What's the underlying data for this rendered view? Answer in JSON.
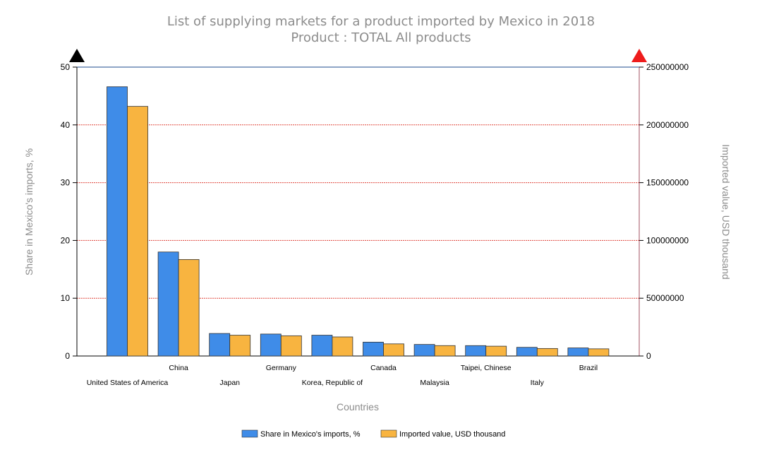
{
  "chart_data": {
    "type": "bar",
    "title": "List of supplying markets for a product imported by Mexico in 2018",
    "subtitle": "Product : TOTAL All products",
    "xlabel": "Countries",
    "ylabel_left": "Share in Mexico's imports, %",
    "ylabel_right": "Imported value, USD thousand",
    "categories": [
      "United States of America",
      "China",
      "Japan",
      "Germany",
      "Korea, Republic of",
      "Canada",
      "Malaysia",
      "Taipei, Chinese",
      "Italy",
      "Brazil"
    ],
    "series": [
      {
        "name": "Share in Mexico's imports, %",
        "axis": "left",
        "color": "#3f8ce8",
        "values": [
          46.6,
          18.0,
          3.9,
          3.8,
          3.6,
          2.4,
          2.0,
          1.8,
          1.5,
          1.4
        ]
      },
      {
        "name": "Imported value, USD thousand",
        "axis": "right",
        "color": "#f8b440",
        "values": [
          216000000,
          83500000,
          18000000,
          17500000,
          16500000,
          10500000,
          9000000,
          8500000,
          6500000,
          6200000
        ]
      }
    ],
    "ylim_left": [
      0,
      50
    ],
    "yticks_left": [
      "0",
      "10",
      "20",
      "30",
      "40",
      "50"
    ],
    "ylim_right": [
      0,
      250000000
    ],
    "yticks_right": [
      "0",
      "50000000",
      "100000000",
      "150000000",
      "200000000",
      "250000000"
    ],
    "grid": true,
    "grid_color": "#e0483e",
    "legend_position": "bottom-center",
    "left_axis_marker_color": "#000000",
    "right_axis_marker_color": "#ee1c1c"
  }
}
